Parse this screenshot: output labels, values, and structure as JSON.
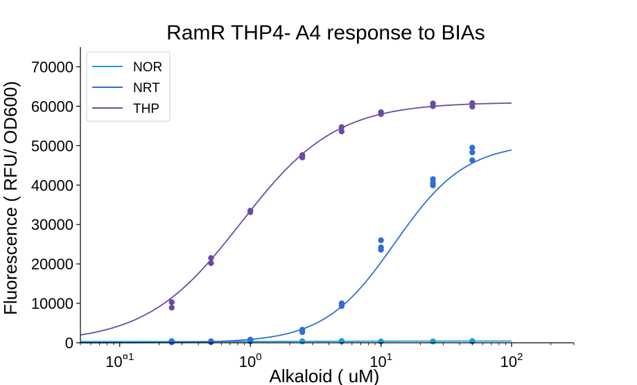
{
  "chart_data": {
    "type": "scatter",
    "title": "RamR THP4- A4 response to BIAs",
    "xlabel": "Alkaloid ( uM)",
    "ylabel": "Fluorescence ( RFU/ OD600)",
    "x_scale": "log",
    "xlim": [
      0.05,
      300
    ],
    "ylim": [
      0,
      75000
    ],
    "grid": false,
    "legend_position": "top-left",
    "x_tick_labels": [
      {
        "value": 0.1,
        "base": "10",
        "exp": "¤1"
      },
      {
        "value": 1,
        "base": "10",
        "exp": "0"
      },
      {
        "value": 10,
        "base": "10",
        "exp": "1"
      },
      {
        "value": 100,
        "base": "10",
        "exp": "2"
      }
    ],
    "y_ticks": [
      0,
      10000,
      20000,
      30000,
      40000,
      50000,
      60000,
      70000
    ],
    "y_tick_labels": [
      "0",
      "10000",
      "20000",
      "30000",
      "40000",
      "50000",
      "60000",
      "70000"
    ],
    "series": [
      {
        "name": "NOR",
        "color": "#1f9ee0",
        "points": [
          {
            "x": 0.25,
            "y": 450
          },
          {
            "x": 0.25,
            "y": 350
          },
          {
            "x": 0.5,
            "y": 400
          },
          {
            "x": 0.5,
            "y": 300
          },
          {
            "x": 1,
            "y": 500
          },
          {
            "x": 1,
            "y": 350
          },
          {
            "x": 2.5,
            "y": 400
          },
          {
            "x": 2.5,
            "y": 300
          },
          {
            "x": 5,
            "y": 450
          },
          {
            "x": 5,
            "y": 350
          },
          {
            "x": 10,
            "y": 350
          },
          {
            "x": 10,
            "y": 300
          },
          {
            "x": 25,
            "y": 350
          },
          {
            "x": 25,
            "y": 300
          },
          {
            "x": 50,
            "y": 450
          },
          {
            "x": 50,
            "y": 350
          }
        ],
        "fit": {
          "bottom": 300,
          "top": 450,
          "ec50": 5,
          "hill": 1
        }
      },
      {
        "name": "NRT",
        "color": "#2f6fd0",
        "points": [
          {
            "x": 0.25,
            "y": 150
          },
          {
            "x": 0.25,
            "y": 100
          },
          {
            "x": 0.5,
            "y": 250
          },
          {
            "x": 0.5,
            "y": 150
          },
          {
            "x": 1,
            "y": 800
          },
          {
            "x": 1,
            "y": 600
          },
          {
            "x": 2.5,
            "y": 3300
          },
          {
            "x": 2.5,
            "y": 2700
          },
          {
            "x": 5,
            "y": 10000
          },
          {
            "x": 5,
            "y": 9300
          },
          {
            "x": 10,
            "y": 26000
          },
          {
            "x": 10,
            "y": 24200
          },
          {
            "x": 10,
            "y": 23600
          },
          {
            "x": 25,
            "y": 41500
          },
          {
            "x": 25,
            "y": 40500
          },
          {
            "x": 25,
            "y": 39900
          },
          {
            "x": 50,
            "y": 49500
          },
          {
            "x": 50,
            "y": 48300
          },
          {
            "x": 50,
            "y": 46300
          }
        ],
        "fit": {
          "bottom": 0,
          "top": 50700,
          "ec50": 12.8,
          "hill": 1.6
        }
      },
      {
        "name": "THP",
        "color": "#6a4c9e",
        "points": [
          {
            "x": 0.25,
            "y": 10300
          },
          {
            "x": 0.25,
            "y": 8900
          },
          {
            "x": 0.5,
            "y": 21500
          },
          {
            "x": 0.5,
            "y": 20200
          },
          {
            "x": 1,
            "y": 33500
          },
          {
            "x": 1,
            "y": 33100
          },
          {
            "x": 2.5,
            "y": 47600
          },
          {
            "x": 2.5,
            "y": 47000
          },
          {
            "x": 5,
            "y": 54700
          },
          {
            "x": 5,
            "y": 53600
          },
          {
            "x": 10,
            "y": 58500
          },
          {
            "x": 10,
            "y": 58000
          },
          {
            "x": 25,
            "y": 60700
          },
          {
            "x": 25,
            "y": 60000
          },
          {
            "x": 50,
            "y": 60800
          },
          {
            "x": 50,
            "y": 59900
          }
        ],
        "fit": {
          "bottom": 0,
          "top": 61000,
          "ec50": 0.85,
          "hill": 1.2
        }
      }
    ]
  }
}
